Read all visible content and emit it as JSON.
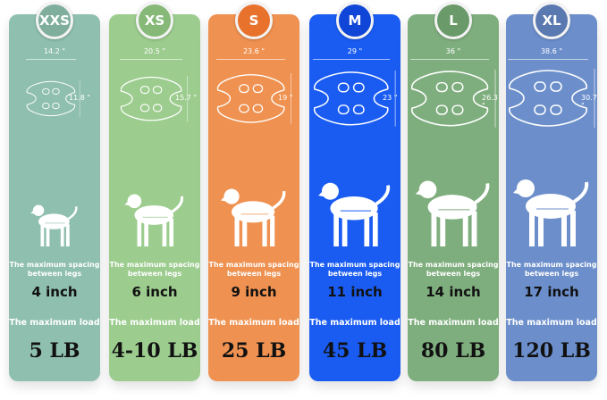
{
  "sizes": [
    {
      "size": "XXS",
      "color": "#8fbfae",
      "badge": "#7fae9c",
      "width": "14.2 \"",
      "height": "11.8 \"",
      "spacing_label": "The maximum spacing between legs",
      "spacing": "4 inch",
      "load_label": "The maximum load",
      "load": "5 LB"
    },
    {
      "size": "XS",
      "color": "#9ccc8e",
      "badge": "#86b978",
      "width": "20.5 \"",
      "height": "15.7 \"",
      "spacing_label": "The maximum spacing between legs",
      "spacing": "6 inch",
      "load_label": "The maximum load",
      "load": "4-10 LB"
    },
    {
      "size": "S",
      "color": "#ef9150",
      "badge": "#e8722c",
      "width": "23.6 \"",
      "height": "19 \"",
      "spacing_label": "The maximum spacing between legs",
      "spacing": "9 inch",
      "load_label": "The maximum load",
      "load": "25 LB"
    },
    {
      "size": "M",
      "color": "#1a5cf2",
      "badge": "#1046d8",
      "width": "29 \"",
      "height": "23 \"",
      "spacing_label": "The maximum spacing between legs",
      "spacing": "11 inch",
      "load_label": "The maximum load",
      "load": "45 LB"
    },
    {
      "size": "L",
      "color": "#7fae7e",
      "badge": "#6a9a69",
      "width": "36 \"",
      "height": "26.3 \"",
      "spacing_label": "The maximum spacing between legs",
      "spacing": "14 inch",
      "load_label": "The maximum load",
      "load": "80 LB"
    },
    {
      "size": "XL",
      "color": "#6c8fcb",
      "badge": "#5a79b0",
      "width": "38.6 \"",
      "height": "30.7 \"",
      "spacing_label": "The maximum spacing between legs",
      "spacing": "17 inch",
      "load_label": "The maximum load",
      "load": "120 LB"
    }
  ]
}
